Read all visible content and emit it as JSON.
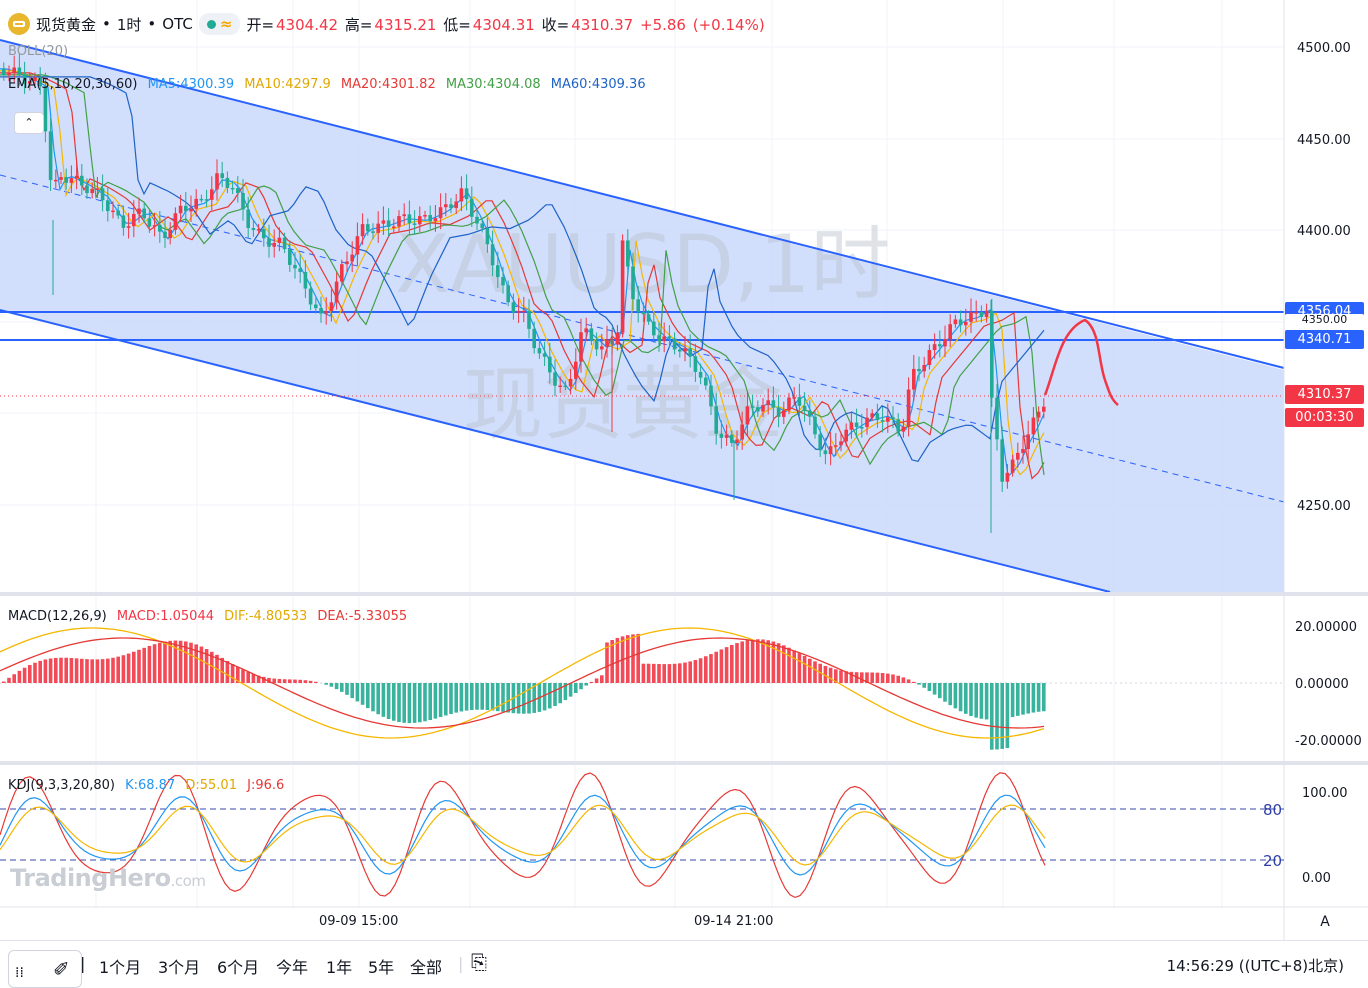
{
  "symbol": {
    "name": "现货黄金",
    "interval": "1时",
    "exchange": "OTC",
    "separator": "•"
  },
  "ohlc": {
    "open_label": "开=",
    "open": "4304.42",
    "high_label": "高=",
    "high": "4315.21",
    "low_label": "低=",
    "low": "4304.31",
    "close_label": "收=",
    "close": "4310.37",
    "change": "+5.86",
    "change_pct": "(+0.14%)"
  },
  "indicators": {
    "boll": "BOLL(20)",
    "ema": {
      "label": "EMA(5,10,20,30,60)",
      "ma5": "MA5:4300.39",
      "ma10": "MA10:4297.9",
      "ma20": "MA20:4301.82",
      "ma30": "MA30:4304.08",
      "ma60": "MA60:4309.36"
    },
    "macd": {
      "label": "MACD(12,26,9)",
      "macd": "MACD:1.05044",
      "dif": "DIF:-4.80533",
      "dea": "DEA:-5.33055"
    },
    "kdj": {
      "label": "KDJ(9,3,3,20,80)",
      "k": "K:68.87",
      "d": "D:55.01",
      "j": "J:96.6"
    }
  },
  "watermark": {
    "line1": "XAUUSD,1时",
    "line2": "现货黄金"
  },
  "price_axis": {
    "ticks": [
      "4500.00",
      "4450.00",
      "4400.00",
      "4250.00"
    ]
  },
  "macd_axis": {
    "ticks": [
      "20.00000",
      "0.00000",
      "-20.00000"
    ]
  },
  "kdj_axis": {
    "ticks": [
      "100.00",
      "0.00"
    ],
    "levels": [
      "80",
      "20"
    ]
  },
  "price_tags": {
    "resistance1": "4356.04",
    "resistance_partial": "4350.00",
    "resistance2": "4340.71",
    "current_price": "4310.37",
    "countdown": "00:03:30"
  },
  "time_axis": {
    "labels": [
      "09-09 15:00",
      "09-14 21:00"
    ]
  },
  "bottom_bar": {
    "ranges": [
      "1个月",
      "3个月",
      "6个月",
      "今年",
      "1年",
      "5年",
      "全部"
    ],
    "clock": "14:56:29 ((UTC+8)北京)",
    "auto_label": "A"
  },
  "branding": {
    "logo": "TradingHero",
    "logo_suffix": ".com"
  },
  "colors": {
    "bull": "#f23645",
    "bear": "#22ab94",
    "channel": "#2962ff",
    "channel_fill": "#c9d8fb",
    "ma5": "#2196f3",
    "ma10": "#f5b700",
    "ma20": "#e53935",
    "ma30": "#43a047",
    "ma60": "#1e63c6",
    "dif": "#f5b700",
    "dea": "#e53935",
    "k": "#2196f3",
    "d": "#f5b700",
    "j": "#e53935",
    "current_tag": "#f23645",
    "level_tag": "#2962ff"
  }
}
